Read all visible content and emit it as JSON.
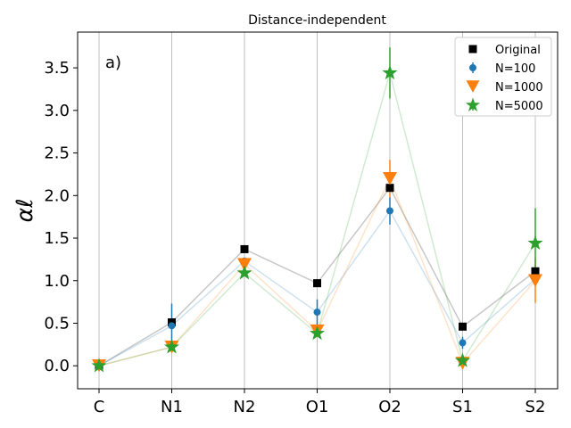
{
  "chart_data": {
    "type": "scatter",
    "title": "Distance-independent",
    "panel_label": "a)",
    "xlabel": "",
    "ylabel": "αℓ",
    "categories": [
      "C",
      "N1",
      "N2",
      "O1",
      "O2",
      "S1",
      "S2"
    ],
    "ylim": [
      -0.27,
      3.92
    ],
    "yticks": [
      0.0,
      0.5,
      1.0,
      1.5,
      2.0,
      2.5,
      3.0,
      3.5
    ],
    "ytick_labels": [
      "0.0",
      "0.5",
      "1.0",
      "1.5",
      "2.0",
      "2.5",
      "3.0",
      "3.5"
    ],
    "grid": "vertical",
    "legend_position": "top-right",
    "series": [
      {
        "name": "Original",
        "marker": "square",
        "color": "#000000",
        "values": [
          0.0,
          0.51,
          1.37,
          0.97,
          2.09,
          0.46,
          1.11
        ],
        "errors": [
          0,
          0,
          0,
          0,
          0,
          0,
          0
        ]
      },
      {
        "name": "N=100",
        "marker": "circle",
        "color": "#1f77b4",
        "values": [
          0.0,
          0.47,
          1.23,
          0.63,
          1.82,
          0.27,
          1.02
        ],
        "errors": [
          0.02,
          0.26,
          0.04,
          0.15,
          0.16,
          0.07,
          0.05
        ]
      },
      {
        "name": "N=1000",
        "marker": "triangle-down",
        "color": "#ff7f0e",
        "values": [
          0.0,
          0.22,
          1.19,
          0.41,
          2.2,
          0.03,
          1.0
        ],
        "errors": [
          0.0,
          0.02,
          0.03,
          0.05,
          0.22,
          0.07,
          0.26
        ]
      },
      {
        "name": "N=5000",
        "marker": "star",
        "color": "#2ca02c",
        "values": [
          0.0,
          0.22,
          1.09,
          0.38,
          3.44,
          0.06,
          1.44
        ],
        "errors": [
          0.0,
          0.01,
          0.03,
          0.03,
          0.3,
          0.02,
          0.41
        ]
      }
    ]
  }
}
